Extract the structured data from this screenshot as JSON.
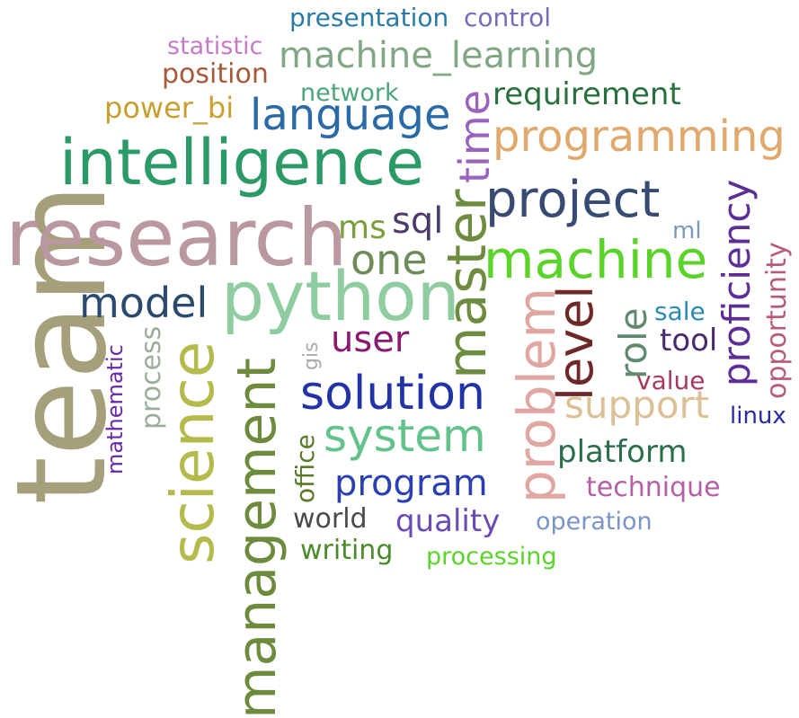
{
  "words": [
    {
      "id": "team",
      "text": "team",
      "color": "#a59f7b"
    },
    {
      "id": "research",
      "text": "research",
      "color": "#b9989f"
    },
    {
      "id": "intelligence",
      "text": "intelligence",
      "color": "#2c9a67"
    },
    {
      "id": "python",
      "text": "python",
      "color": "#8fcca0"
    },
    {
      "id": "science",
      "text": "science",
      "color": "#b5bb4a"
    },
    {
      "id": "management",
      "text": "management",
      "color": "#6d8b3c"
    },
    {
      "id": "project",
      "text": "project",
      "color": "#364a73"
    },
    {
      "id": "machine",
      "text": "machine",
      "color": "#5bd42a"
    },
    {
      "id": "master",
      "text": "master",
      "color": "#6e8c40"
    },
    {
      "id": "problem",
      "text": "problem",
      "color": "#e0a6a2"
    },
    {
      "id": "programming",
      "text": "programming",
      "color": "#e0a86b"
    },
    {
      "id": "language",
      "text": "language",
      "color": "#2a6aa6"
    },
    {
      "id": "machine_learning",
      "text": "machine_learning",
      "color": "#81a785"
    },
    {
      "id": "solution",
      "text": "solution",
      "color": "#2233a8"
    },
    {
      "id": "system",
      "text": "system",
      "color": "#62c38a"
    },
    {
      "id": "time",
      "text": "time",
      "color": "#9a63be"
    },
    {
      "id": "level",
      "text": "level",
      "color": "#6e2828"
    },
    {
      "id": "model",
      "text": "model",
      "color": "#2a4a6e"
    },
    {
      "id": "one",
      "text": "one",
      "color": "#6e8c58"
    },
    {
      "id": "proficiency",
      "text": "proficiency",
      "color": "#5d2f96"
    },
    {
      "id": "support",
      "text": "support",
      "color": "#dcc197"
    },
    {
      "id": "program",
      "text": "program",
      "color": "#2a3fb4"
    },
    {
      "id": "role",
      "text": "role",
      "color": "#5f8a6e"
    },
    {
      "id": "requirement",
      "text": "requirement",
      "color": "#28703e"
    },
    {
      "id": "user",
      "text": "user",
      "color": "#8a1a6e"
    },
    {
      "id": "sql",
      "text": "sql",
      "color": "#4a3a6e"
    },
    {
      "id": "ms",
      "text": "ms",
      "color": "#7a9e3a"
    },
    {
      "id": "tool",
      "text": "tool",
      "color": "#4a2a6e"
    },
    {
      "id": "platform",
      "text": "platform",
      "color": "#2a6e4a"
    },
    {
      "id": "technique",
      "text": "technique",
      "color": "#b45fa6"
    },
    {
      "id": "quality",
      "text": "quality",
      "color": "#6a4ab4"
    },
    {
      "id": "opportunity",
      "text": "opportunity",
      "color": "#b85a7a"
    },
    {
      "id": "process",
      "text": "process",
      "color": "#9aae9a"
    },
    {
      "id": "mathematic",
      "text": "mathematic",
      "color": "#6a2aa8"
    },
    {
      "id": "office",
      "text": "office",
      "color": "#5a7a2a"
    },
    {
      "id": "writing",
      "text": "writing",
      "color": "#4a8a2a"
    },
    {
      "id": "world",
      "text": "world",
      "color": "#4a4a4a"
    },
    {
      "id": "processing",
      "text": "processing",
      "color": "#5ad42a"
    },
    {
      "id": "operation",
      "text": "operation",
      "color": "#7a94c8"
    },
    {
      "id": "presentation",
      "text": "presentation",
      "color": "#2a7aa6"
    },
    {
      "id": "control",
      "text": "control",
      "color": "#7a6ab8"
    },
    {
      "id": "statistic",
      "text": "statistic",
      "color": "#c87ac8"
    },
    {
      "id": "position",
      "text": "position",
      "color": "#a65a3a"
    },
    {
      "id": "power_bi",
      "text": "power_bi",
      "color": "#c8a030"
    },
    {
      "id": "network",
      "text": "network",
      "color": "#4aa67a"
    },
    {
      "id": "linux",
      "text": "linux",
      "color": "#2a2aa8"
    },
    {
      "id": "sale",
      "text": "sale",
      "color": "#2a8ab4"
    },
    {
      "id": "value",
      "text": "value",
      "color": "#a63a5a"
    },
    {
      "id": "ml",
      "text": "ml",
      "color": "#7a9ab8"
    },
    {
      "id": "gis",
      "text": "gis",
      "color": "#aaaaaa"
    }
  ]
}
